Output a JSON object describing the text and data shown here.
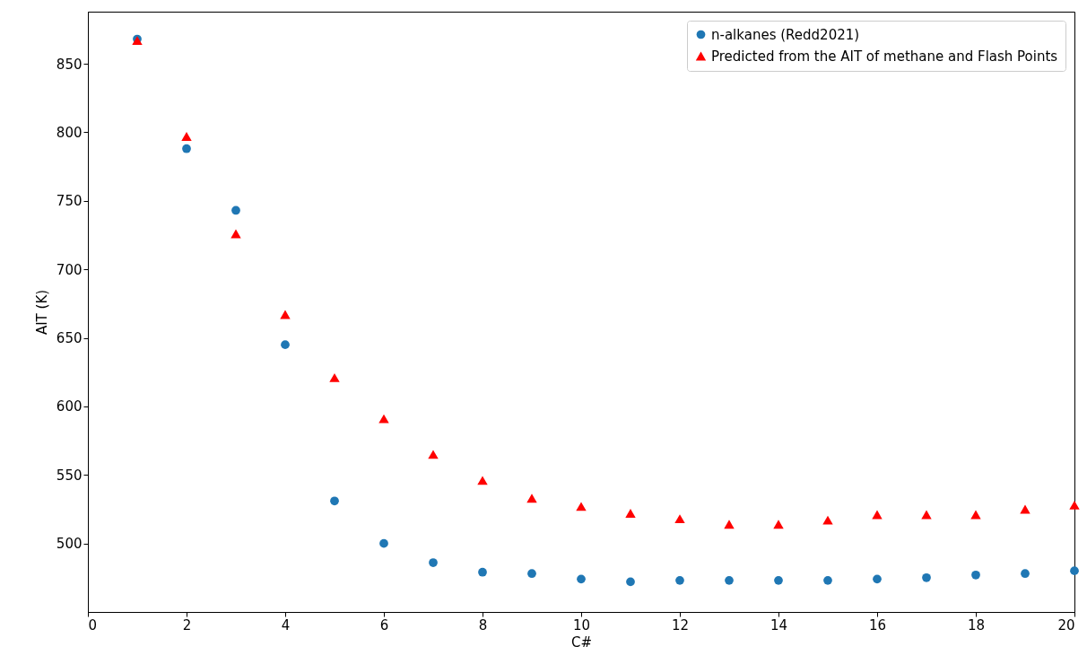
{
  "chart_data": {
    "type": "scatter",
    "xlabel": "C#",
    "ylabel": "AIT (K)",
    "x": [
      1,
      2,
      3,
      4,
      5,
      6,
      7,
      8,
      9,
      10,
      11,
      12,
      13,
      14,
      15,
      16,
      17,
      18,
      19,
      20
    ],
    "series": [
      {
        "name": "n-alkanes (Redd2021)",
        "color": "#1f77b4",
        "marker": "circle",
        "values": [
          868,
          788,
          743,
          645,
          531,
          500,
          486,
          479,
          478,
          474,
          472,
          473,
          473,
          473,
          473,
          474,
          475,
          477,
          478,
          480
        ]
      },
      {
        "name": "Predicted from the AIT of methane and Flash Points",
        "color": "#ff0000",
        "marker": "triangle",
        "values": [
          867,
          797,
          726,
          667,
          621,
          591,
          565,
          546,
          533,
          527,
          522,
          518,
          514,
          514,
          517,
          521,
          521,
          521,
          525,
          528
        ]
      }
    ],
    "xlim": [
      0,
      20
    ],
    "xticks": [
      0,
      2,
      4,
      6,
      8,
      10,
      12,
      14,
      16,
      18,
      20
    ],
    "ylim": [
      450,
      888
    ],
    "yticks": [
      500,
      550,
      600,
      650,
      700,
      750,
      800,
      850
    ],
    "grid": false,
    "legend": "top right"
  }
}
